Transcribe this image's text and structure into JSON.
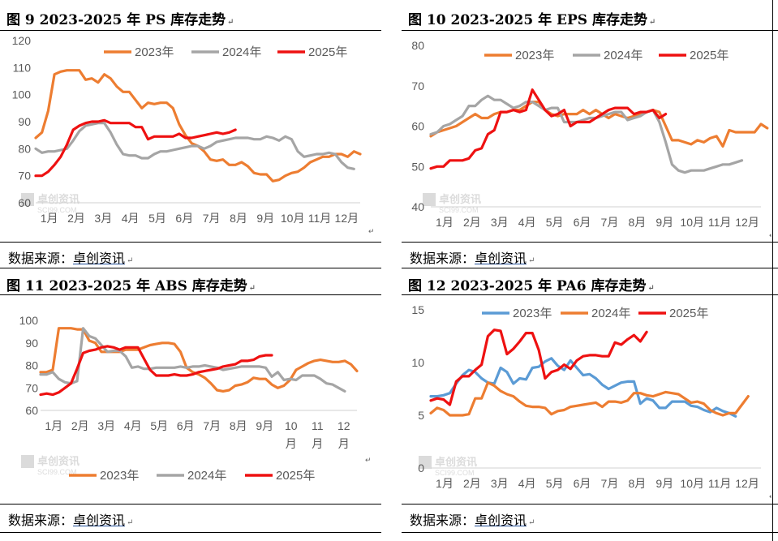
{
  "source_label": "数据来源：",
  "source_name": "卓创资讯",
  "return_mark": "↵",
  "watermark": {
    "cn": "卓创资讯",
    "en": "SCI99.COM"
  },
  "colors": {
    "2023年": "#ED7D31",
    "2024年": "#A5A5A5",
    "2025年": "#EE1111",
    "blue": "#5B9BD5"
  },
  "chart_data": [
    {
      "title": "图 9 2023-2025 年 PS 库存走势",
      "type": "line",
      "ylim": [
        60,
        120
      ],
      "yticks": [
        60,
        70,
        80,
        90,
        100,
        110,
        120
      ],
      "months": [
        "1月",
        "2月",
        "3月",
        "4月",
        "5月",
        "6月",
        "7月",
        "8月",
        "9月",
        "10月",
        "11月",
        "12月"
      ],
      "legend": "top",
      "series": [
        {
          "name": "2023年",
          "color": "#ED7D31",
          "values": [
            84,
            86,
            94,
            107.5,
            108.5,
            109,
            109,
            109,
            105.5,
            106,
            104.5,
            107.5,
            106,
            103,
            101,
            101,
            98,
            95,
            97,
            96.5,
            97,
            97,
            95,
            89,
            85,
            82,
            81,
            79,
            76,
            75.5,
            76,
            74,
            74,
            75,
            73.5,
            71,
            70.5,
            70.5,
            68,
            68.5,
            70,
            71,
            71.5,
            73,
            75,
            76,
            77,
            77,
            78,
            78,
            77,
            79,
            78
          ]
        },
        {
          "name": "2024年",
          "color": "#A5A5A5",
          "values": [
            80,
            78.5,
            79,
            79,
            79.5,
            80,
            83,
            86.5,
            88.5,
            89,
            89.5,
            89.5,
            86,
            81.5,
            78,
            77.5,
            77.5,
            76.5,
            76.5,
            78,
            79,
            79,
            79.5,
            80,
            80.5,
            81,
            81,
            80,
            81,
            82.5,
            83,
            83.5,
            84,
            84,
            84,
            83.5,
            83.5,
            84.5,
            84,
            83,
            84.5,
            83.5,
            79,
            77,
            77.5,
            78,
            78,
            78.5,
            78,
            75,
            73,
            72.5
          ]
        },
        {
          "name": "2025年",
          "color": "#EE1111",
          "values": [
            70,
            70,
            71.5,
            74,
            77,
            81.5,
            87,
            88.5,
            89.5,
            90,
            90,
            90.5,
            89.5,
            89.5,
            89.5,
            89.5,
            88,
            88,
            83.5,
            84.5,
            84.5,
            84.5,
            84.5,
            85.5,
            84,
            84,
            84.5,
            85,
            85.5,
            86,
            85.5,
            86,
            87
          ]
        }
      ]
    },
    {
      "title": "图 10 2023-2025 年 EPS 库存走势",
      "type": "line",
      "ylim": [
        40,
        80
      ],
      "yticks": [
        40,
        50,
        60,
        70,
        80
      ],
      "months": [
        "1月",
        "2月",
        "3月",
        "4月",
        "5月",
        "6月",
        "7月",
        "8月",
        "9月",
        "10月",
        "11月",
        "12月"
      ],
      "legend": "top",
      "series": [
        {
          "name": "2023年",
          "color": "#ED7D31",
          "values": [
            57.5,
            58.5,
            59,
            59.5,
            60,
            61,
            62,
            63,
            62,
            62,
            63,
            63.5,
            63.5,
            64,
            64,
            65,
            66,
            66,
            64,
            63,
            62.5,
            63,
            63,
            63,
            64,
            63,
            64,
            63,
            62,
            63,
            62.5,
            62,
            62.5,
            63,
            63.5,
            64,
            63.5,
            60,
            56.5,
            56.5,
            56,
            55.5,
            56.5,
            56,
            57,
            57.5,
            55,
            59,
            58.5,
            58.5,
            58.5,
            58.5,
            60.5,
            59.5
          ]
        },
        {
          "name": "2024年",
          "color": "#A5A5A5",
          "values": [
            58,
            58.5,
            60,
            60.5,
            61.5,
            62.5,
            65,
            65,
            66.5,
            67.5,
            66.5,
            66.5,
            65.5,
            64.5,
            65,
            66,
            66,
            65,
            64,
            64.5,
            64.5,
            61,
            61,
            61,
            61.5,
            62,
            62,
            62.5,
            63,
            63.5,
            63.5,
            61.5,
            62,
            62.5,
            63.5,
            64,
            61,
            56,
            50.5,
            49,
            48.5,
            49,
            49,
            49,
            49.5,
            50,
            50.5,
            50.5,
            51,
            51.5
          ]
        },
        {
          "name": "2025年",
          "color": "#EE1111",
          "values": [
            49.5,
            50,
            50,
            51.5,
            51.5,
            51.5,
            52,
            54,
            54.5,
            58,
            59,
            63.5,
            63.5,
            64,
            63.5,
            64,
            69,
            66.5,
            64,
            62.5,
            63,
            64,
            60,
            61,
            61,
            61,
            62,
            63,
            64,
            64.5,
            64.5,
            64.5,
            63,
            63.5,
            63.5,
            64,
            62,
            63
          ]
        }
      ]
    },
    {
      "title": "图 11 2023-2025 年 ABS 库存走势",
      "type": "line",
      "ylim": [
        60,
        100
      ],
      "yticks": [
        60,
        70,
        80,
        90,
        100
      ],
      "months": [
        "1月",
        "2月",
        "3月",
        "4月",
        "5月",
        "6月",
        "7月",
        "8月",
        "9月",
        "10月",
        "11月",
        "12月"
      ],
      "legend": "bottom",
      "series": [
        {
          "name": "2023年",
          "color": "#ED7D31",
          "values": [
            77,
            77,
            78,
            96.5,
            96.5,
            96.5,
            96,
            96,
            91,
            90,
            86,
            86,
            86,
            86,
            87,
            87,
            87,
            88,
            89,
            89.5,
            90,
            90,
            89.5,
            86,
            79,
            77,
            76,
            74.5,
            72,
            69,
            68.5,
            69,
            71,
            71.5,
            72.5,
            74.5,
            74,
            74,
            71.5,
            70,
            71,
            73.5,
            78,
            79.5,
            81,
            82,
            82.5,
            82,
            81.5,
            81.5,
            82,
            80.5,
            77.5
          ]
        },
        {
          "name": "2024年",
          "color": "#A5A5A5",
          "values": [
            76,
            76,
            77,
            74,
            72.5,
            72,
            73,
            96.5,
            93,
            92,
            89,
            86,
            86.5,
            86.5,
            84,
            79,
            79.5,
            78.5,
            78.5,
            79,
            79,
            79,
            79,
            79.5,
            79,
            79.5,
            79.5,
            80,
            79.5,
            79,
            78,
            78.5,
            79,
            79.5,
            79.5,
            79.5,
            79.5,
            79,
            75,
            77,
            73.5,
            74,
            73.5,
            75.5,
            75.5,
            75.5,
            74,
            72,
            71.5,
            70,
            68.5
          ]
        },
        {
          "name": "2025年",
          "color": "#EE1111",
          "values": [
            67,
            67.5,
            67,
            68,
            70,
            72,
            78.5,
            85.5,
            86.5,
            87,
            88,
            88.5,
            88,
            87,
            88,
            88,
            88,
            83,
            78,
            75.5,
            75.5,
            75.5,
            76,
            75.5,
            75.5,
            76,
            77,
            77.5,
            78,
            78.5,
            79.5,
            80,
            80.5,
            82,
            82,
            82.5,
            84,
            84.5,
            84.5
          ]
        }
      ]
    },
    {
      "title": "图 12 2023-2025 年 PA6 库存走势",
      "type": "line",
      "ylim": [
        0,
        15
      ],
      "yticks": [
        0,
        5,
        10,
        15
      ],
      "months": [
        "1月",
        "2月",
        "3月",
        "4月",
        "5月",
        "6月",
        "7月",
        "8月",
        "9月",
        "10月",
        "11月",
        "12月"
      ],
      "legend": "top",
      "series": [
        {
          "name": "2023年",
          "color": "#5B9BD5",
          "values": [
            6.8,
            6.8,
            6.9,
            7.1,
            8,
            8.8,
            9.3,
            9.1,
            8.5,
            8.1,
            8,
            9.5,
            9.1,
            8,
            8.5,
            8.4,
            9.5,
            9.6,
            10.1,
            10.4,
            9.7,
            9.3,
            10.2,
            9.5,
            8.8,
            8.9,
            8.5,
            7.9,
            7.5,
            7.8,
            8.1,
            8.2,
            8.2,
            6.1,
            6.6,
            6.4,
            5.7,
            5.7,
            6.3,
            6.3,
            6.3,
            5.9,
            5.8,
            5.5,
            5.3,
            5.7,
            5.4,
            5.2,
            4.9
          ]
        },
        {
          "name": "2024年",
          "color": "#ED7D31",
          "values": [
            5.2,
            5.7,
            5.5,
            5,
            5,
            5,
            5.1,
            6.6,
            6.6,
            8.1,
            7.8,
            7.3,
            7,
            6.8,
            6.3,
            5.9,
            5.8,
            5.8,
            5.7,
            5.1,
            5.4,
            5.5,
            5.8,
            5.9,
            6,
            6.1,
            6.2,
            5.8,
            6.3,
            6.3,
            6.2,
            6.4,
            7.1,
            7.1,
            6.9,
            6.8,
            7,
            7.2,
            7.1,
            7,
            6.6,
            6.2,
            6.3,
            6.1,
            5.5,
            5.2,
            5,
            5.2,
            5.2,
            6,
            6.8
          ]
        },
        {
          "name": "2025年",
          "color": "#EE1111",
          "values": [
            6.4,
            6.6,
            6.5,
            6,
            8.2,
            8.7,
            8.7,
            9.3,
            9.8,
            12.5,
            13.1,
            13,
            10.8,
            11.3,
            12,
            12.8,
            12.8,
            11.2,
            8.5,
            9.1,
            9.3,
            9.8,
            9.4,
            10.2,
            10.6,
            10.7,
            10.7,
            10.6,
            10.6,
            11.9,
            11.7,
            12.2,
            12.6,
            12,
            12.9
          ]
        }
      ]
    }
  ]
}
